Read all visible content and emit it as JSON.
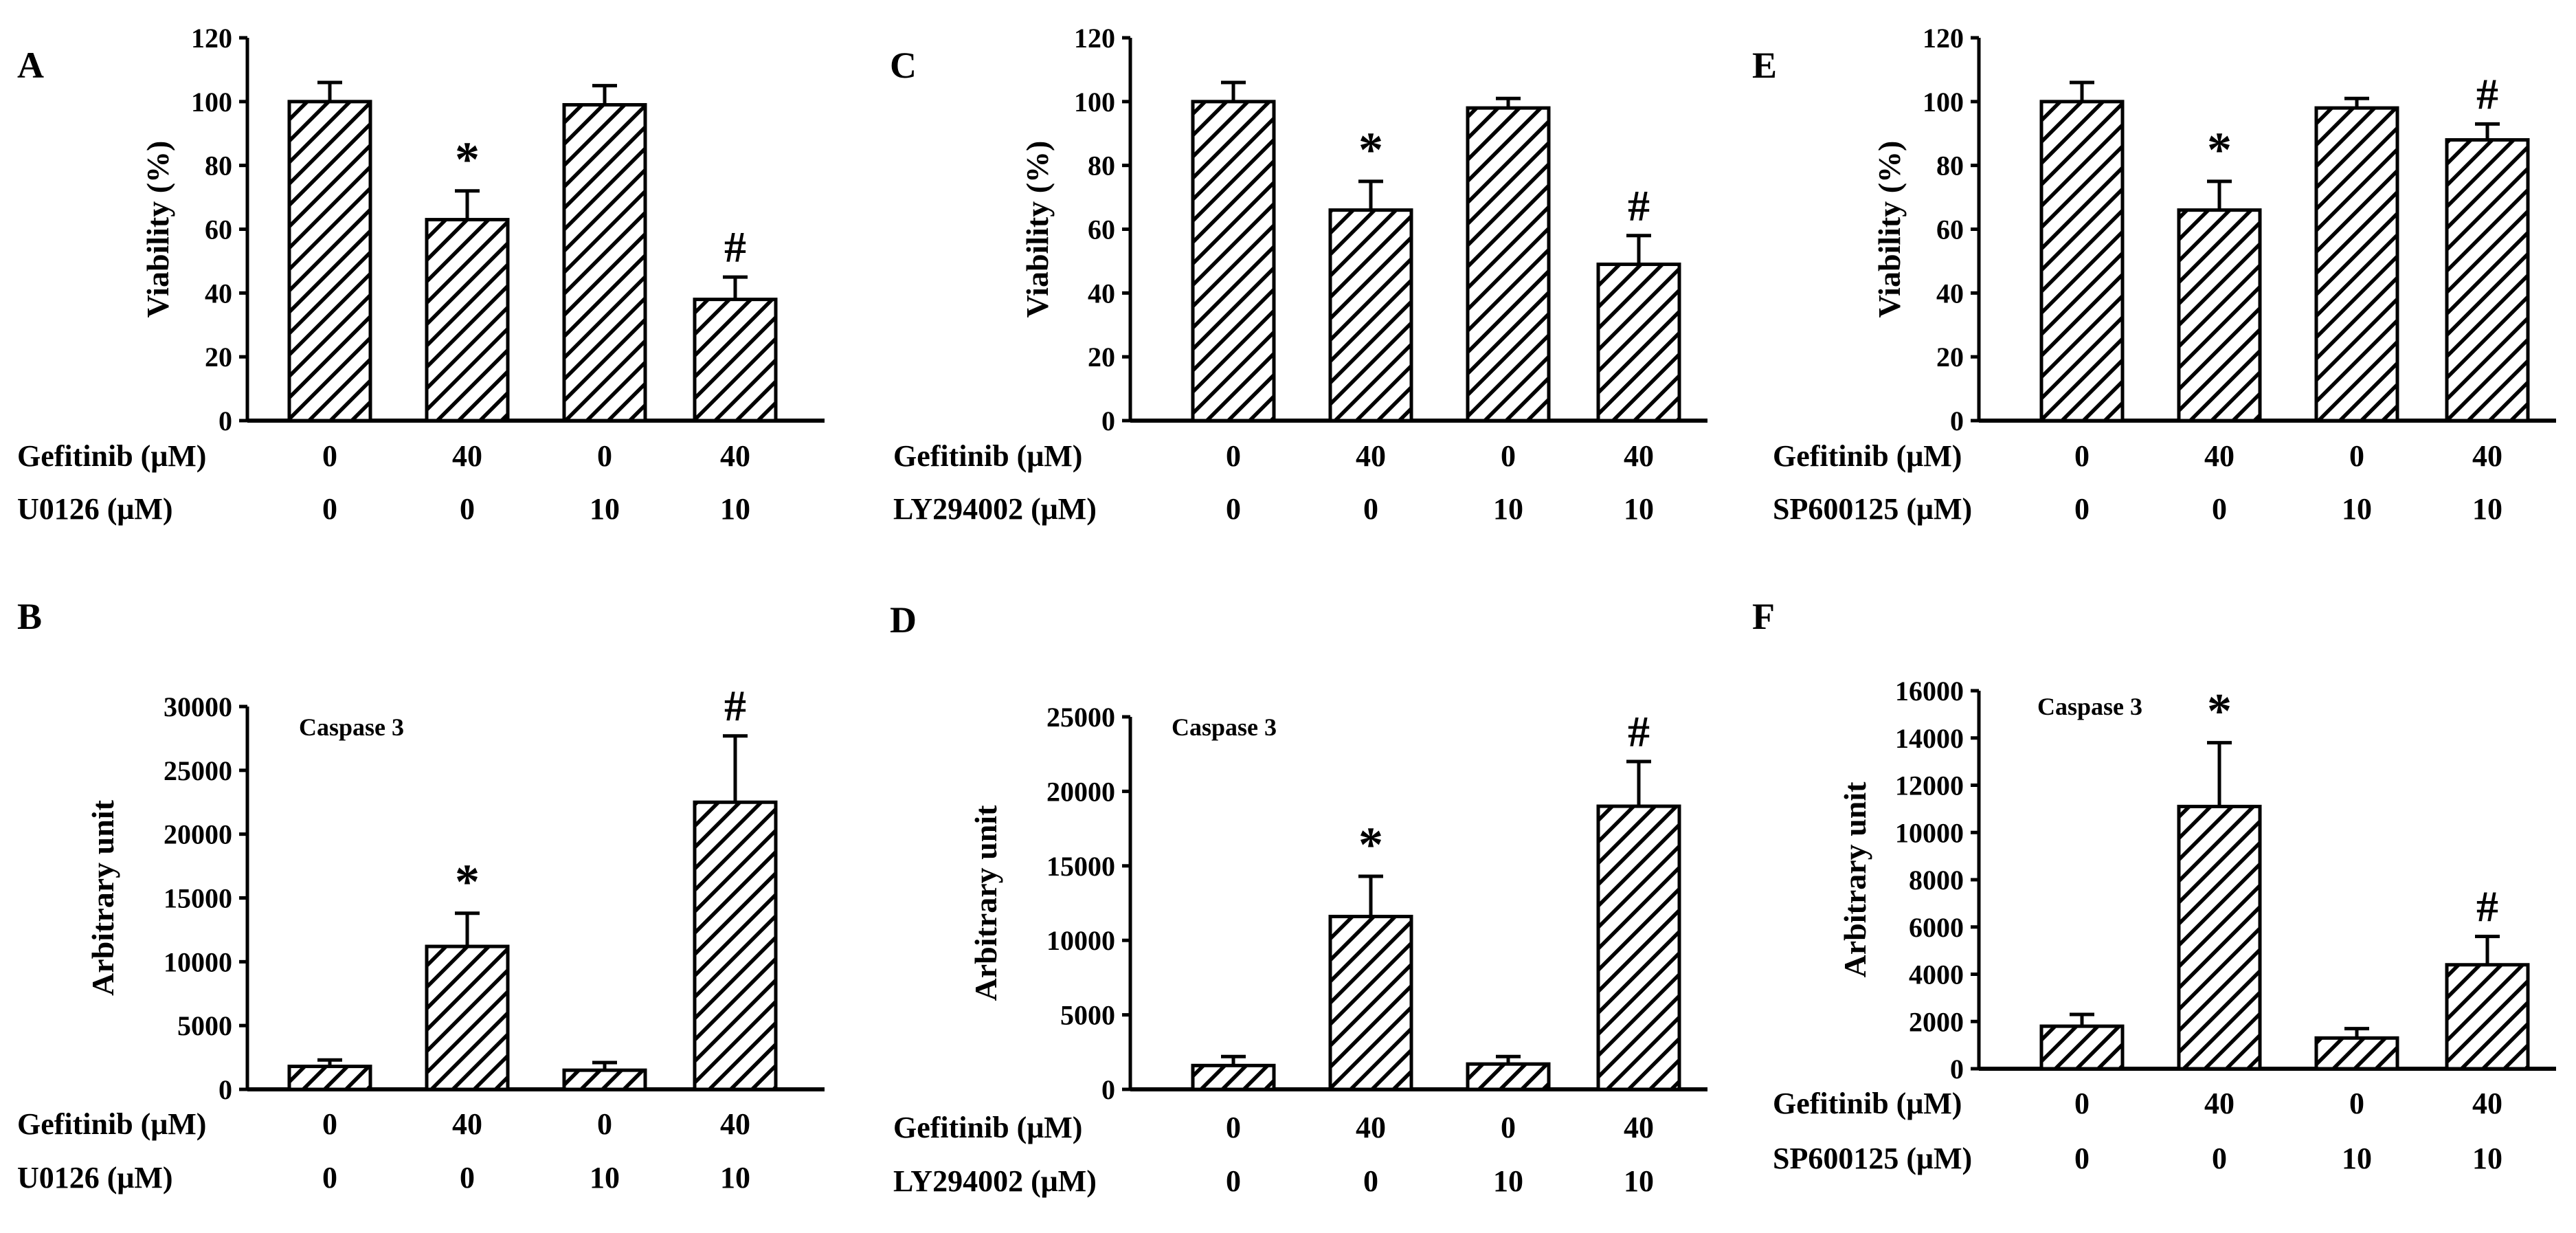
{
  "figure": {
    "hatch_color": "#000000",
    "background": "#ffffff"
  },
  "chart_data": [
    {
      "panel": "A",
      "type": "bar",
      "ylabel": "Viability (%)",
      "ylim": [
        0,
        120
      ],
      "yticks": [
        0,
        20,
        40,
        60,
        80,
        100,
        120
      ],
      "values": [
        100,
        63,
        99,
        38
      ],
      "errors": [
        6,
        9,
        6,
        7
      ],
      "marks": [
        "",
        "*",
        "",
        "#"
      ],
      "inset_label": "",
      "rows": [
        {
          "label": "Gefitinib (μM)",
          "values": [
            "0",
            "40",
            "0",
            "40"
          ]
        },
        {
          "label": "U0126 (μM)",
          "values": [
            "0",
            "0",
            "10",
            "10"
          ]
        }
      ]
    },
    {
      "panel": "C",
      "type": "bar",
      "ylabel": "Viability (%)",
      "ylim": [
        0,
        120
      ],
      "yticks": [
        0,
        20,
        40,
        60,
        80,
        100,
        120
      ],
      "values": [
        100,
        66,
        98,
        49
      ],
      "errors": [
        6,
        9,
        3,
        9
      ],
      "marks": [
        "",
        "*",
        "",
        "#"
      ],
      "inset_label": "",
      "rows": [
        {
          "label": "Gefitinib (μM)",
          "values": [
            "0",
            "40",
            "0",
            "40"
          ]
        },
        {
          "label": "LY294002 (μM)",
          "values": [
            "0",
            "0",
            "10",
            "10"
          ]
        }
      ]
    },
    {
      "panel": "E",
      "type": "bar",
      "ylabel": "Viability (%)",
      "ylim": [
        0,
        120
      ],
      "yticks": [
        0,
        20,
        40,
        60,
        80,
        100,
        120
      ],
      "values": [
        100,
        66,
        98,
        88
      ],
      "errors": [
        6,
        9,
        3,
        5
      ],
      "marks": [
        "",
        "*",
        "",
        "#"
      ],
      "inset_label": "",
      "rows": [
        {
          "label": "Gefitinib (μM)",
          "values": [
            "0",
            "40",
            "0",
            "40"
          ]
        },
        {
          "label": "SP600125 (μM)",
          "values": [
            "0",
            "0",
            "10",
            "10"
          ]
        }
      ]
    },
    {
      "panel": "B",
      "type": "bar",
      "ylabel": "Arbitrary unit",
      "ylim": [
        0,
        30000
      ],
      "yticks": [
        0,
        5000,
        10000,
        15000,
        20000,
        25000,
        30000
      ],
      "values": [
        1800,
        11200,
        1500,
        22500
      ],
      "errors": [
        500,
        2600,
        600,
        5200
      ],
      "marks": [
        "",
        "*",
        "",
        "#"
      ],
      "inset_label": "Caspase 3",
      "rows": [
        {
          "label": "Gefitinib (μM)",
          "values": [
            "0",
            "40",
            "0",
            "40"
          ]
        },
        {
          "label": "U0126 (μM)",
          "values": [
            "0",
            "0",
            "10",
            "10"
          ]
        }
      ]
    },
    {
      "panel": "D",
      "type": "bar",
      "ylabel": "Arbitrary unit",
      "ylim": [
        0,
        25000
      ],
      "yticks": [
        0,
        5000,
        10000,
        15000,
        20000,
        25000
      ],
      "values": [
        1600,
        11600,
        1700,
        19000
      ],
      "errors": [
        600,
        2700,
        500,
        3000
      ],
      "marks": [
        "",
        "*",
        "",
        "#"
      ],
      "inset_label": "Caspase 3",
      "rows": [
        {
          "label": "Gefitinib (μM)",
          "values": [
            "0",
            "40",
            "0",
            "40"
          ]
        },
        {
          "label": "LY294002 (μM)",
          "values": [
            "0",
            "0",
            "10",
            "10"
          ]
        }
      ]
    },
    {
      "panel": "F",
      "type": "bar",
      "ylabel": "Arbitrary unit",
      "ylim": [
        0,
        16000
      ],
      "yticks": [
        0,
        2000,
        4000,
        6000,
        8000,
        10000,
        12000,
        14000,
        16000
      ],
      "values": [
        1800,
        11100,
        1300,
        4400
      ],
      "errors": [
        500,
        2700,
        400,
        1200
      ],
      "marks": [
        "",
        "*",
        "",
        "#"
      ],
      "inset_label": "Caspase 3",
      "rows": [
        {
          "label": "Gefitinib (μM)",
          "values": [
            "0",
            "40",
            "0",
            "40"
          ]
        },
        {
          "label": "SP600125 (μM)",
          "values": [
            "0",
            "0",
            "10",
            "10"
          ]
        }
      ]
    }
  ]
}
